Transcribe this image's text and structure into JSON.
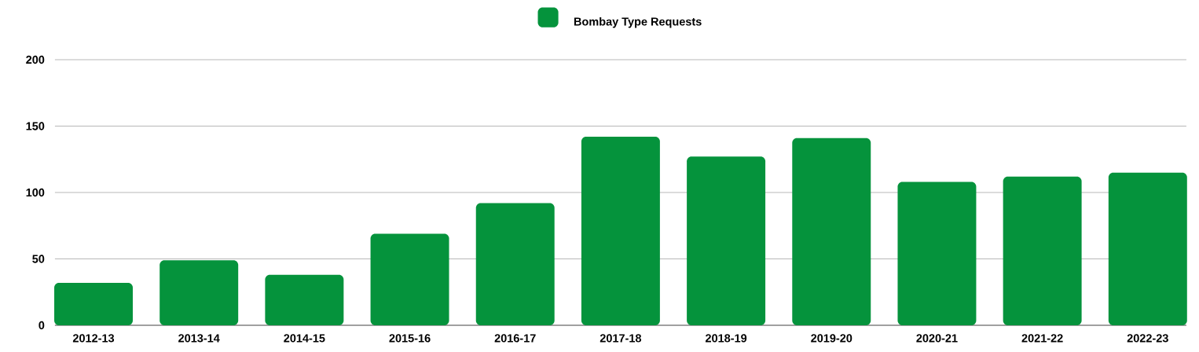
{
  "chart_data": {
    "type": "bar",
    "categories": [
      "2012-13",
      "2013-14",
      "2014-15",
      "2015-16",
      "2016-17",
      "2017-18",
      "2018-19",
      "2019-20",
      "2020-21",
      "2021-22",
      "2022-23"
    ],
    "series": [
      {
        "name": "Bombay Type Requests",
        "color": "#05933c",
        "values": [
          32,
          49,
          38,
          69,
          92,
          142,
          127,
          141,
          108,
          112,
          115
        ]
      }
    ],
    "ylim": [
      0,
      200
    ],
    "yticks": [
      0,
      50,
      100,
      150,
      200
    ],
    "grid": "y",
    "legend": "top"
  }
}
